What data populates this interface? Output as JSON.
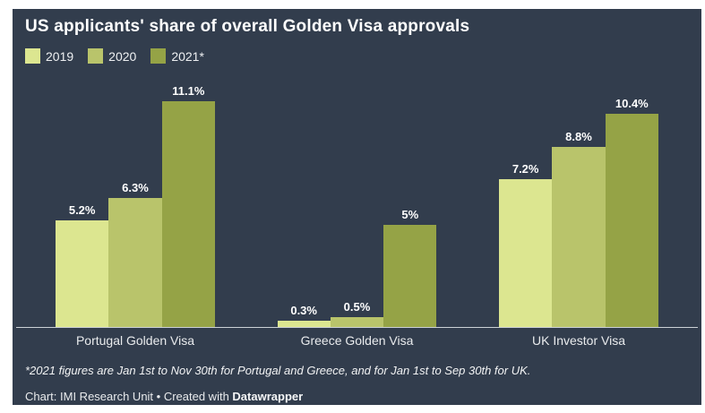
{
  "chart_data": {
    "type": "bar",
    "title": "US applicants' share of overall Golden Visa approvals",
    "categories": [
      "Portugal Golden Visa",
      "Greece Golden Visa",
      "UK Investor Visa"
    ],
    "series": [
      {
        "name": "2019",
        "color": "#dce690",
        "values": [
          5.2,
          0.3,
          7.2
        ],
        "labels": [
          "5.2%",
          "0.3%",
          "7.2%"
        ]
      },
      {
        "name": "2020",
        "color": "#b9c46b",
        "values": [
          6.3,
          0.5,
          8.8
        ],
        "labels": [
          "6.3%",
          "0.5%",
          "8.8%"
        ]
      },
      {
        "name": "2021*",
        "color": "#95a346",
        "values": [
          11.1,
          5,
          10.4
        ],
        "labels": [
          "11.1%",
          "5%",
          "10.4%"
        ]
      }
    ],
    "unit": "%",
    "xlabel": "",
    "ylabel": "",
    "ylim": [
      0,
      11.9
    ],
    "grid": false,
    "legend_position": "top-left",
    "value_labels_shown": true
  },
  "footer": {
    "footnote": "*2021 figures are Jan 1st to Nov 30th for Portugal and Greece, and for Jan 1st to Sep 30th for UK.",
    "credit_prefix": "Chart: IMI Research Unit • Created with ",
    "credit_brand": "Datawrapper"
  },
  "theme": {
    "page_background": "#ffffff",
    "card_background": "#323d4d",
    "title_color": "#ffffff",
    "value_label_color": "#ffffff",
    "category_label_color": "#e9ebed",
    "axis_line_color": "#ccd1d6"
  }
}
